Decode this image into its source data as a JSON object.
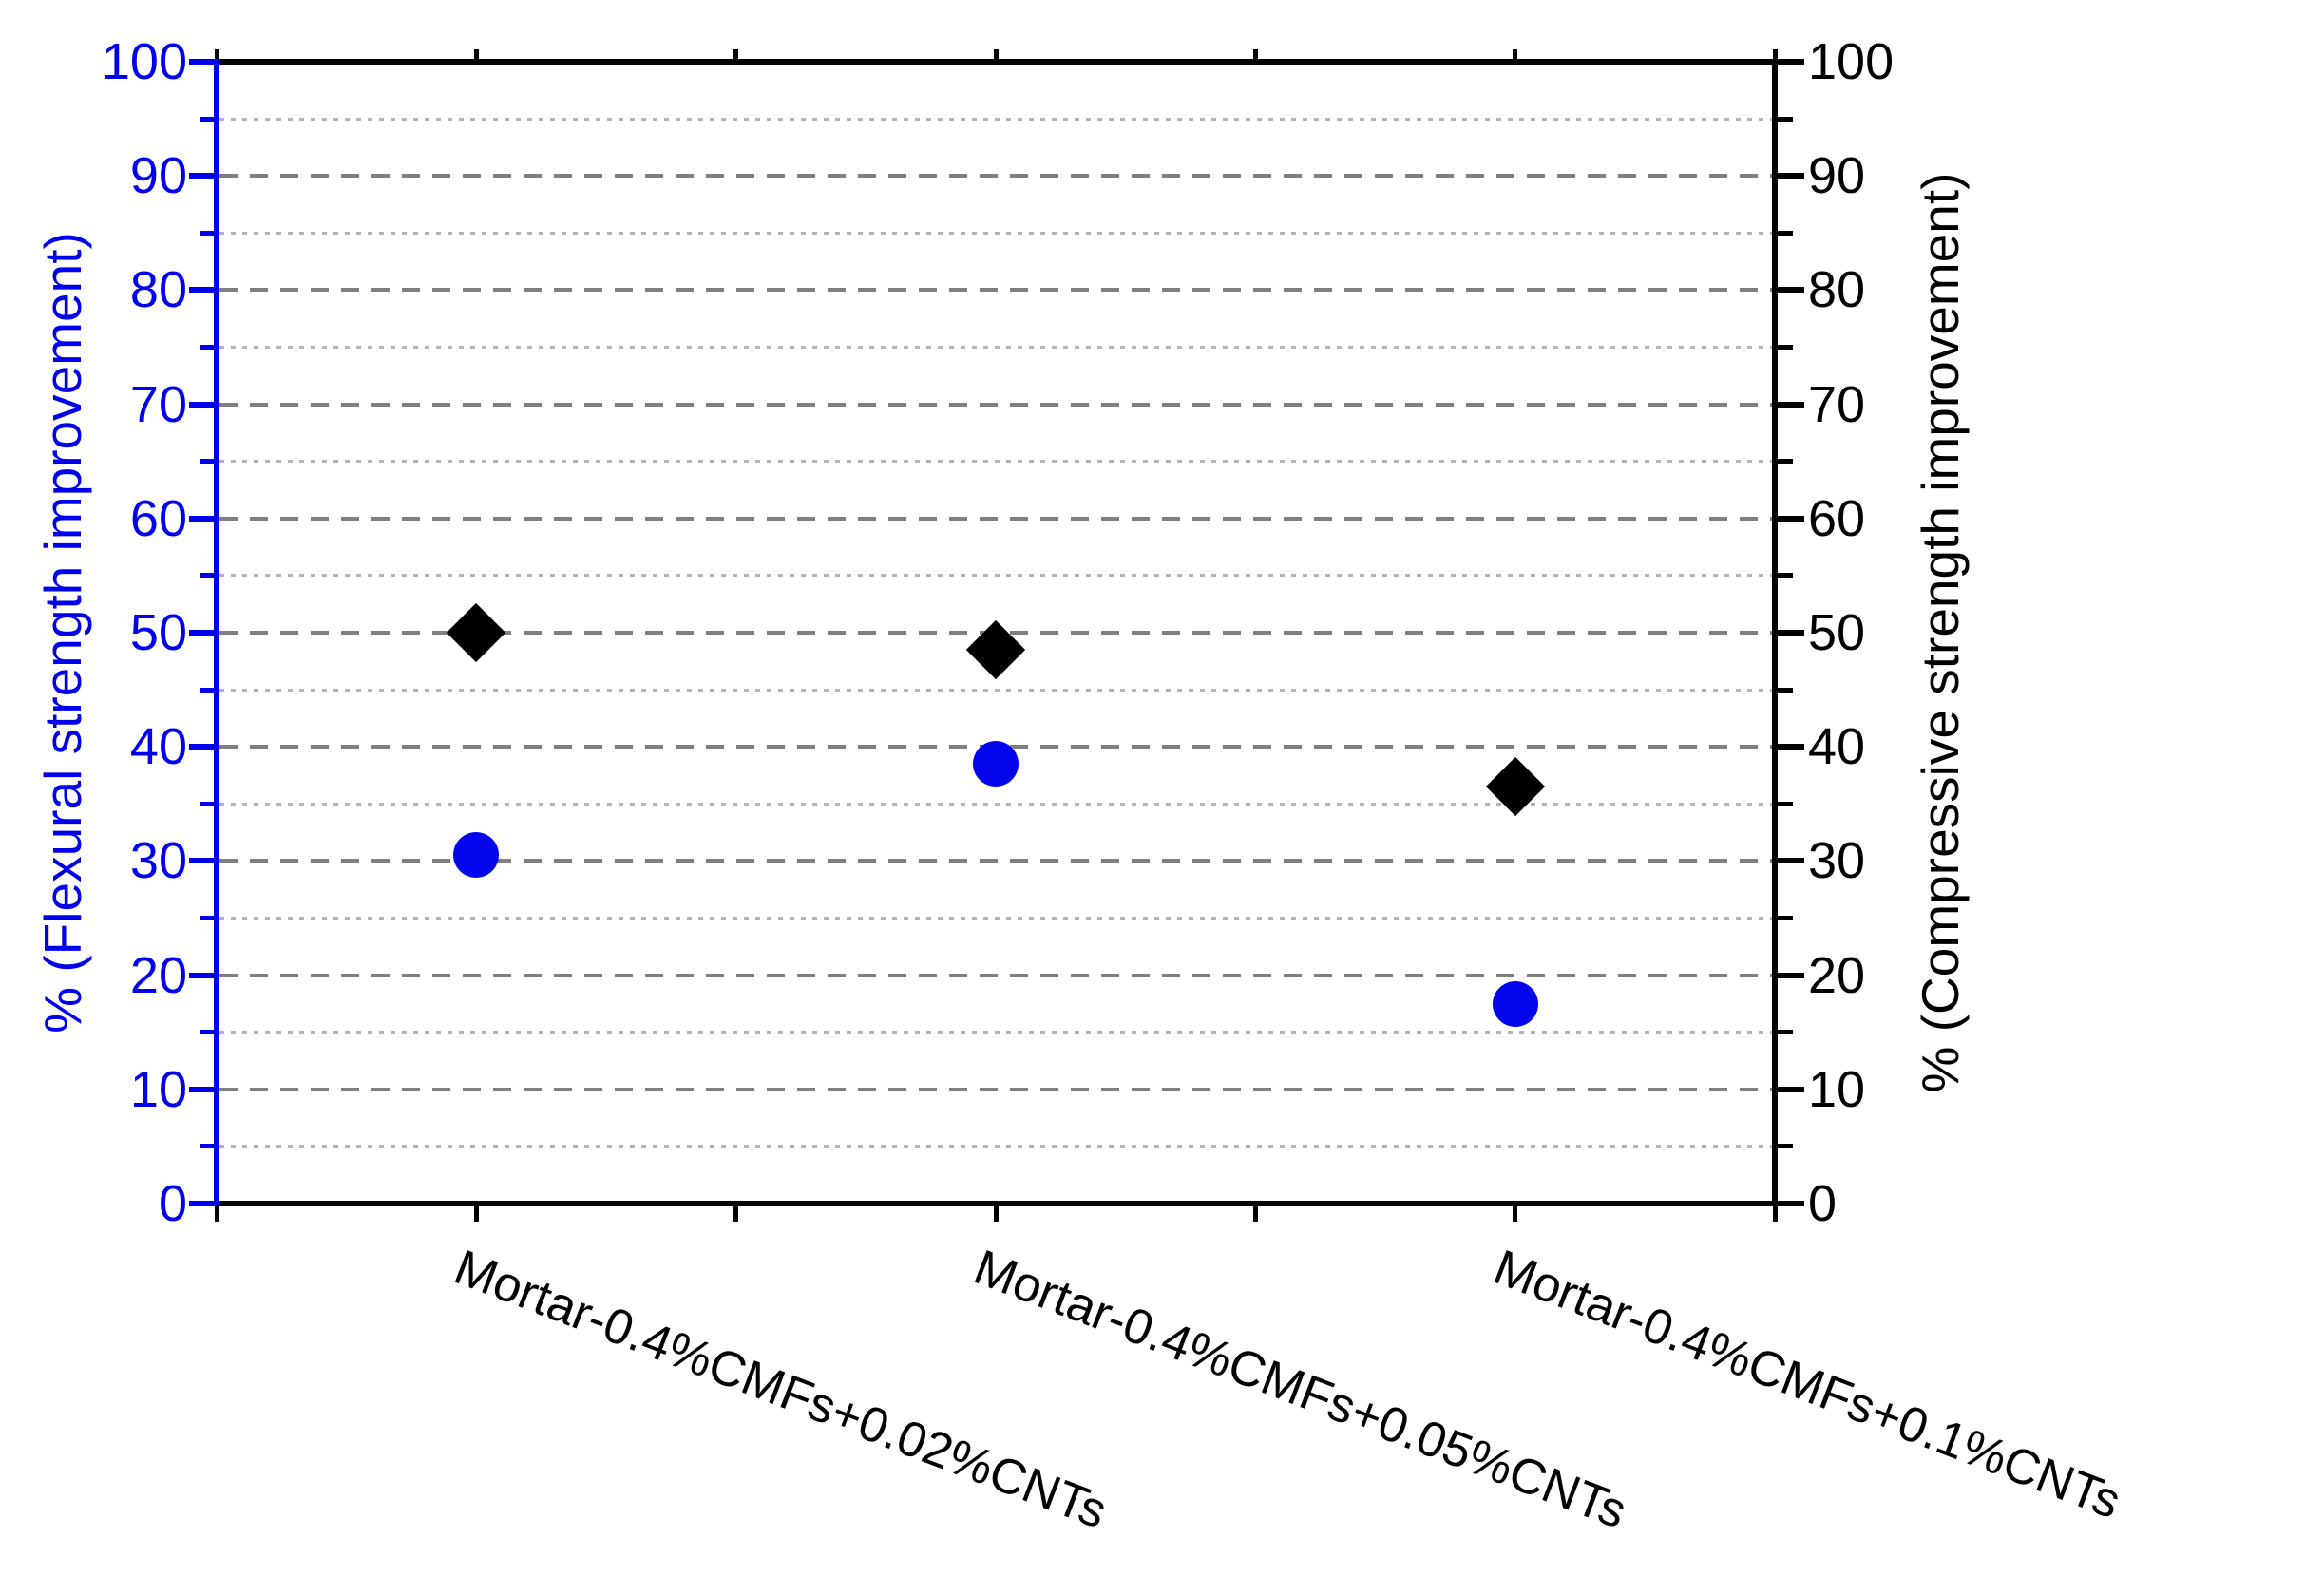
{
  "chart_data": {
    "type": "scatter",
    "title": "",
    "categories": [
      "Mortar-0.4%CMFs+0.02%CNTs",
      "Mortar-0.4%CMFs+0.05%CNTs",
      "Mortar-0.4%CMFs+0.1%CNTs"
    ],
    "series": [
      {
        "name": "Flexural strength improvement",
        "axis": "left",
        "marker": "circle",
        "color": "#0505ee",
        "values": [
          30.5,
          38.5,
          17.5
        ]
      },
      {
        "name": "Compressive strength improvement",
        "axis": "right",
        "marker": "diamond",
        "color": "#000000",
        "values": [
          50,
          48.5,
          36.5
        ]
      }
    ],
    "left_axis": {
      "label": "% (Flexural strength improvement)",
      "min": 0,
      "max": 100,
      "major_step": 10,
      "minor_step": 5,
      "tick_labels": [
        "0",
        "10",
        "20",
        "30",
        "40",
        "50",
        "60",
        "70",
        "80",
        "90",
        "100"
      ],
      "color": "#0000ee"
    },
    "right_axis": {
      "label": "% (Compressive strength improvement)",
      "min": 0,
      "max": 100,
      "major_step": 10,
      "minor_step": 5,
      "tick_labels": [
        "0",
        "10",
        "20",
        "30",
        "40",
        "50",
        "60",
        "70",
        "80",
        "90",
        "100"
      ],
      "color": "#000000"
    },
    "x_axis": {
      "label_rotation_deg": 21,
      "tick_divisions": 6,
      "color": "#000000"
    },
    "grid": {
      "orientation": "horizontal",
      "major_style": "dashed",
      "minor_style": "dotted",
      "major_color": "#7f7f7f",
      "minor_color": "#b3b3b3"
    },
    "legend": "none",
    "background": "#ffffff"
  }
}
